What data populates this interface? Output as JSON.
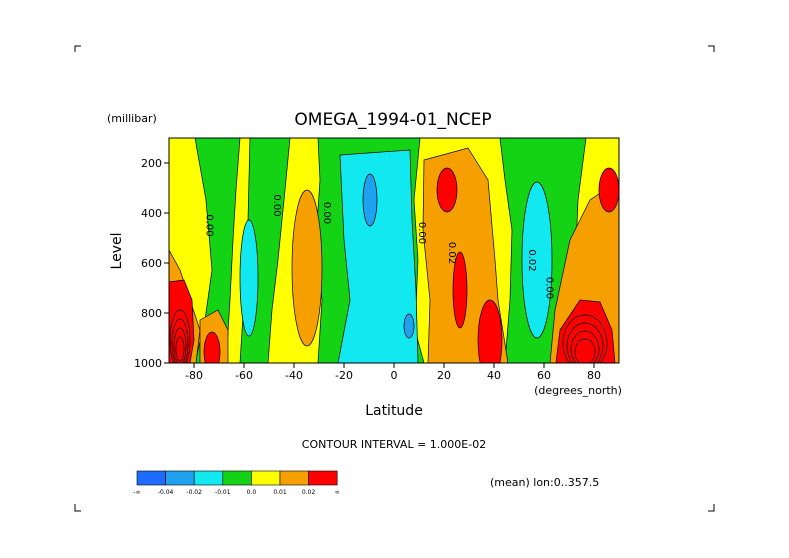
{
  "chart_data": {
    "type": "contour",
    "title": "OMEGA_1994-01_NCEP",
    "xlabel": "Latitude",
    "x_unit": "(degrees_north)",
    "ylabel": "Level",
    "y_unit": "(millibar)",
    "xlim": [
      -90,
      90
    ],
    "ylim": [
      1000,
      100
    ],
    "x_ticks": [
      "-80",
      "-60",
      "-40",
      "-20",
      "0",
      "20",
      "40",
      "60",
      "80"
    ],
    "y_ticks": [
      "200",
      "400",
      "600",
      "800",
      "1000"
    ],
    "contour_interval_text": "CONTOUR INTERVAL = 1.000E-02",
    "footnote": "(mean) lon:0..357.5",
    "contour_labels": [
      {
        "text": "0.00",
        "lat": -75,
        "level": 450
      },
      {
        "text": "0.00",
        "lat": -48,
        "level": 370
      },
      {
        "text": "0.00",
        "lat": -28,
        "level": 400
      },
      {
        "text": "0.00",
        "lat": 10,
        "level": 480
      },
      {
        "text": "0.02",
        "lat": 22,
        "level": 560
      },
      {
        "text": "0.02",
        "lat": 54,
        "level": 590
      },
      {
        "text": "0.00",
        "lat": 61,
        "level": 700
      }
    ],
    "colorbar": {
      "labels": [
        "-∞",
        "-0.04",
        "-0.02",
        "-0.01",
        "0.0",
        "0.01",
        "0.02",
        "∞"
      ],
      "colors": [
        "#1e6cff",
        "#1ea2f0",
        "#12e8f0",
        "#14d214",
        "#ffff00",
        "#f5a000",
        "#ff0000"
      ]
    },
    "fill_colors": {
      "neg_03": "#1e6cff",
      "neg_02": "#1ea2f0",
      "neg_01": "#12e8f0",
      "zero_neg": "#14d214",
      "zero_pos": "#ffff00",
      "pos_01": "#f5a000",
      "pos_02": "#ff0000"
    }
  }
}
